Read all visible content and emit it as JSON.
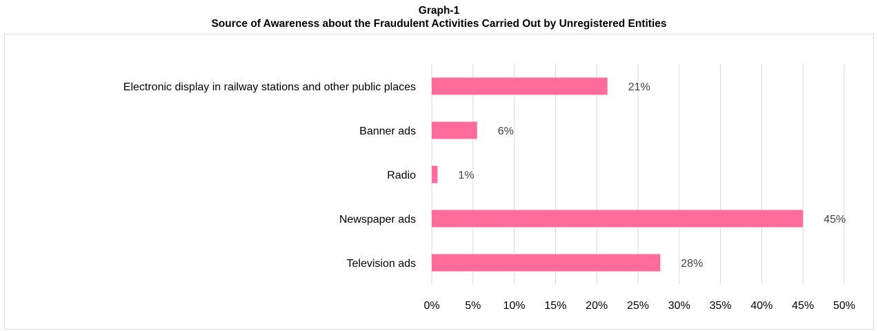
{
  "title": "Graph-1",
  "subtitle": "Source of Awareness about the Fraudulent Activities Carried Out by Unregistered Entities",
  "chart_data": {
    "type": "bar",
    "orientation": "horizontal",
    "title": "Graph-1",
    "subtitle": "Source of Awareness about the Fraudulent Activities Carried Out by Unregistered Entities",
    "categories": [
      "Electronic display in railway stations and other public places",
      "Banner ads",
      "Radio",
      "Newspaper ads",
      "Television ads"
    ],
    "values": [
      21.3,
      5.5,
      0.7,
      45.0,
      27.7
    ],
    "data_labels": [
      "21%",
      "6%",
      "1%",
      "45%",
      "28%"
    ],
    "xlim": [
      0,
      50
    ],
    "xticks": [
      "0%",
      "5%",
      "10%",
      "15%",
      "20%",
      "25%",
      "30%",
      "35%",
      "40%",
      "45%",
      "50%"
    ],
    "bar_color": "#ff6b9a",
    "grid": "vertical",
    "legend": "none"
  }
}
